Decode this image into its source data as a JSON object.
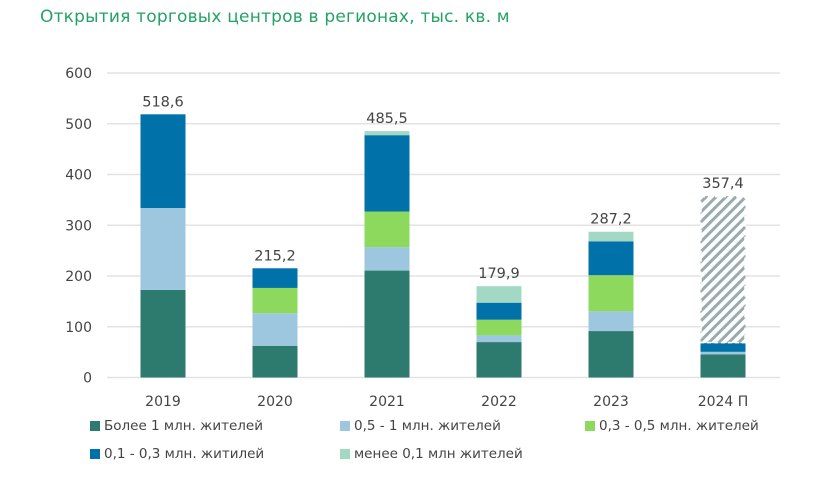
{
  "chart_data": {
    "type": "bar",
    "stacked": true,
    "title": "Открытия торговых центров в регионах, тыс. кв. м",
    "xlabel": "",
    "ylabel": "",
    "ylim": [
      0,
      600
    ],
    "yticks": [
      0,
      100,
      200,
      300,
      400,
      500,
      600
    ],
    "grid": true,
    "legend_position": "bottom",
    "categories": [
      "2019",
      "2020",
      "2021",
      "2022",
      "2023",
      "2024 П"
    ],
    "totals": [
      "518,6",
      "215,2",
      "485,5",
      "179,9",
      "287,2",
      "357,4"
    ],
    "series": [
      {
        "name": "Более 1 млн. жителей",
        "color": "#2d7a6f",
        "values": [
          172.5,
          62.5,
          210.7,
          69.8,
          91.5,
          45.4
        ]
      },
      {
        "name": "0,5 - 1 млн. жителей",
        "color": "#9cc7de",
        "values": [
          161.5,
          64.0,
          46.3,
          13.2,
          38.9,
          5.2
        ]
      },
      {
        "name": "0,3 - 0,5 млн. жителей",
        "color": "#8cd95e",
        "values": [
          0,
          50.0,
          70.0,
          30.9,
          71.2,
          0
        ]
      },
      {
        "name": "0,1 - 0,3 млн. житилей",
        "color": "#0071a9",
        "values": [
          184.6,
          38.7,
          150.5,
          33.5,
          66.4,
          17.2
        ]
      },
      {
        "name": "менее 0,1 млн жителей",
        "color": "#a3d9c4",
        "values": [
          0,
          0,
          8.0,
          32.5,
          19.2,
          0
        ]
      },
      {
        "color": "#9aabae",
        "pattern": "hatched",
        "values": [
          0,
          0,
          0,
          0,
          0,
          289.6
        ]
      }
    ]
  }
}
